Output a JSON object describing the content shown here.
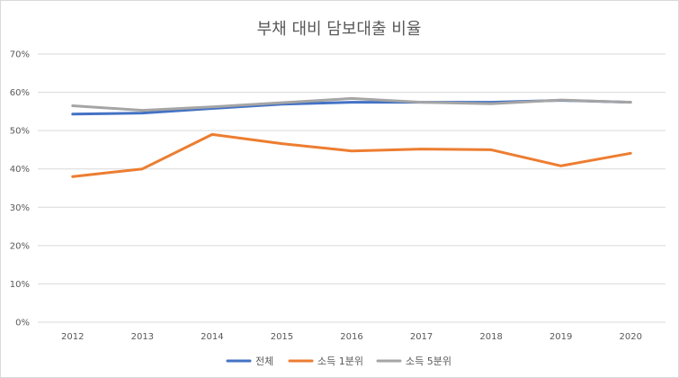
{
  "chart_data": {
    "type": "line",
    "title": "부채 대비 담보대출 비율",
    "xlabel": "",
    "ylabel": "",
    "x": [
      "2012",
      "2013",
      "2014",
      "2015",
      "2016",
      "2017",
      "2018",
      "2019",
      "2020"
    ],
    "ylim": [
      0,
      70
    ],
    "y_ticks": [
      "0%",
      "10%",
      "20%",
      "30%",
      "40%",
      "50%",
      "60%",
      "70%"
    ],
    "grid": true,
    "legend_position": "bottom",
    "series": [
      {
        "name": "전체",
        "color": "#4472c4",
        "values": [
          54.3,
          54.6,
          55.8,
          56.9,
          57.4,
          57.4,
          57.4,
          57.9,
          57.4
        ]
      },
      {
        "name": "소득 1분위",
        "color": "#ed7d31",
        "values": [
          38.0,
          40.0,
          49.0,
          46.6,
          44.7,
          45.2,
          45.0,
          40.8,
          44.1
        ]
      },
      {
        "name": "소득 5분위",
        "color": "#a5a5a5",
        "values": [
          56.5,
          55.3,
          56.2,
          57.3,
          58.4,
          57.4,
          57.0,
          58.0,
          57.4
        ]
      }
    ]
  }
}
